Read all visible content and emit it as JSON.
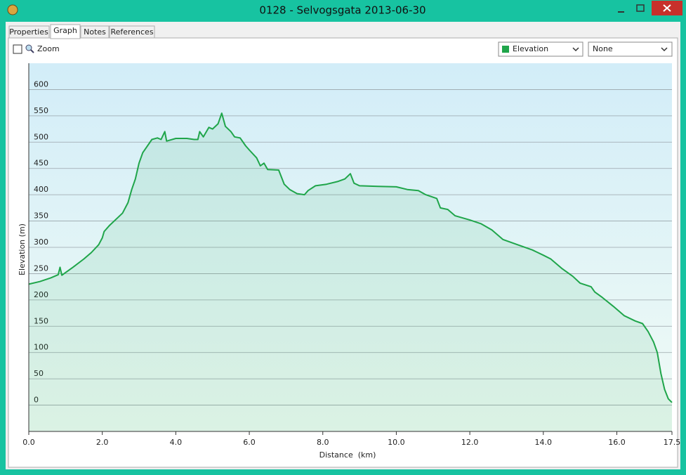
{
  "window": {
    "title": "0128 - Selvogsgata 2013-06-30"
  },
  "tabs": [
    "Properties",
    "Graph",
    "Notes",
    "References"
  ],
  "controls": {
    "zoom_label": "Zoom",
    "secondary_select": "None"
  },
  "chart_data": {
    "type": "line",
    "x_label": "Distance  (km)",
    "y_label": "Elevation (m)",
    "x": [
      0.0,
      0.3,
      0.6,
      0.8,
      0.85,
      0.9,
      1.2,
      1.5,
      1.7,
      1.9,
      2.0,
      2.05,
      2.2,
      2.4,
      2.55,
      2.7,
      2.8,
      2.9,
      3.0,
      3.1,
      3.2,
      3.35,
      3.5,
      3.6,
      3.7,
      3.75,
      4.0,
      4.3,
      4.5,
      4.6,
      4.65,
      4.75,
      4.9,
      5.0,
      5.15,
      5.25,
      5.35,
      5.5,
      5.6,
      5.75,
      5.9,
      6.0,
      6.2,
      6.3,
      6.4,
      6.5,
      6.8,
      6.95,
      7.1,
      7.3,
      7.5,
      7.6,
      7.8,
      8.1,
      8.4,
      8.6,
      8.75,
      8.85,
      9.0,
      9.5,
      10.0,
      10.3,
      10.6,
      10.8,
      11.1,
      11.2,
      11.4,
      11.6,
      12.0,
      12.3,
      12.6,
      12.9,
      13.3,
      13.7,
      14.0,
      14.2,
      14.5,
      14.8,
      15.0,
      15.3,
      15.4,
      15.6,
      15.9,
      16.2,
      16.5,
      16.7,
      16.85,
      17.0,
      17.1,
      17.2,
      17.3,
      17.4,
      17.5
    ],
    "series": [
      {
        "name": "Elevation",
        "color": "#1fa54a",
        "values": [
          230,
          235,
          242,
          248,
          262,
          247,
          262,
          278,
          290,
          305,
          318,
          330,
          342,
          355,
          365,
          385,
          410,
          430,
          460,
          480,
          490,
          505,
          508,
          505,
          520,
          502,
          507,
          507,
          505,
          505,
          520,
          510,
          528,
          525,
          535,
          555,
          530,
          520,
          510,
          508,
          493,
          485,
          470,
          455,
          460,
          448,
          447,
          420,
          410,
          402,
          400,
          408,
          417,
          420,
          425,
          430,
          440,
          422,
          417,
          416,
          415,
          410,
          408,
          400,
          393,
          375,
          372,
          360,
          352,
          345,
          333,
          315,
          305,
          295,
          285,
          278,
          260,
          245,
          232,
          225,
          215,
          205,
          188,
          170,
          160,
          155,
          140,
          120,
          100,
          60,
          30,
          12,
          5
        ]
      }
    ],
    "xlim": [
      0,
      17.5
    ],
    "xticks": [
      {
        "value": 0,
        "label": "0.0"
      },
      {
        "value": 2,
        "label": "2.0"
      },
      {
        "value": 4,
        "label": "4.0"
      },
      {
        "value": 6,
        "label": "6.0"
      },
      {
        "value": 8,
        "label": "8.0"
      },
      {
        "value": 10,
        "label": "10.0"
      },
      {
        "value": 12,
        "label": "12.0"
      },
      {
        "value": 14,
        "label": "14.0"
      },
      {
        "value": 16,
        "label": "16.0"
      },
      17.5
    ],
    "ylim": [
      -50,
      650
    ],
    "yticks": [
      0,
      50,
      100,
      150,
      200,
      250,
      300,
      350,
      400,
      450,
      500,
      550,
      600
    ],
    "grid": true
  }
}
